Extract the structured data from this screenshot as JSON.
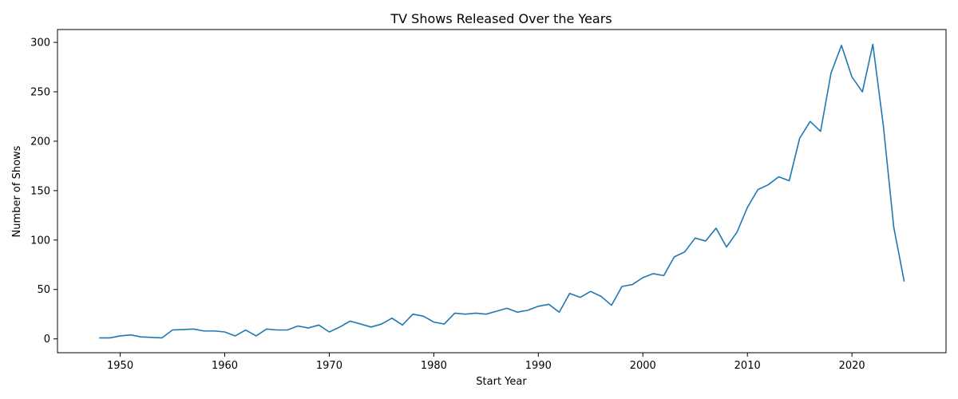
{
  "chart_data": {
    "type": "line",
    "title": "TV Shows Released Over the Years",
    "xlabel": "Start Year",
    "ylabel": "Number of Shows",
    "xlim": [
      1944,
      2029
    ],
    "ylim": [
      -14,
      313
    ],
    "xticks": [
      1950,
      1960,
      1970,
      1980,
      1990,
      2000,
      2010,
      2020
    ],
    "yticks": [
      0,
      50,
      100,
      150,
      200,
      250,
      300
    ],
    "grid": false,
    "legend": "none",
    "series": [
      {
        "color": "#1f77b4",
        "x": [
          1948,
          1949,
          1950,
          1951,
          1952,
          1953,
          1954,
          1955,
          1956,
          1957,
          1958,
          1959,
          1960,
          1961,
          1962,
          1963,
          1964,
          1965,
          1966,
          1967,
          1968,
          1969,
          1970,
          1971,
          1972,
          1973,
          1974,
          1975,
          1976,
          1977,
          1978,
          1979,
          1980,
          1981,
          1982,
          1983,
          1984,
          1985,
          1986,
          1987,
          1988,
          1989,
          1990,
          1991,
          1992,
          1993,
          1994,
          1995,
          1996,
          1997,
          1998,
          1999,
          2000,
          2001,
          2002,
          2003,
          2004,
          2005,
          2006,
          2007,
          2008,
          2009,
          2010,
          2011,
          2012,
          2013,
          2014,
          2015,
          2016,
          2017,
          2018,
          2019,
          2020,
          2021,
          2022,
          2023,
          2024,
          2025
        ],
        "y": [
          1,
          1,
          3,
          4,
          2,
          1.5,
          1,
          9,
          9.5,
          10,
          8,
          8,
          7,
          3,
          9,
          3,
          10,
          9,
          9,
          13,
          11,
          14,
          7,
          12,
          18,
          15,
          12,
          15,
          21,
          14,
          25,
          23,
          17,
          15,
          26,
          25,
          26,
          25,
          28,
          31,
          27,
          29,
          33,
          35,
          27,
          46,
          42,
          48,
          43,
          34,
          53,
          55,
          62,
          66,
          64,
          83,
          88,
          102,
          99,
          112,
          93,
          108,
          133,
          151,
          156,
          164,
          160,
          203,
          220,
          210,
          269,
          297,
          265,
          250,
          298,
          216,
          113,
          58
        ]
      }
    ]
  }
}
